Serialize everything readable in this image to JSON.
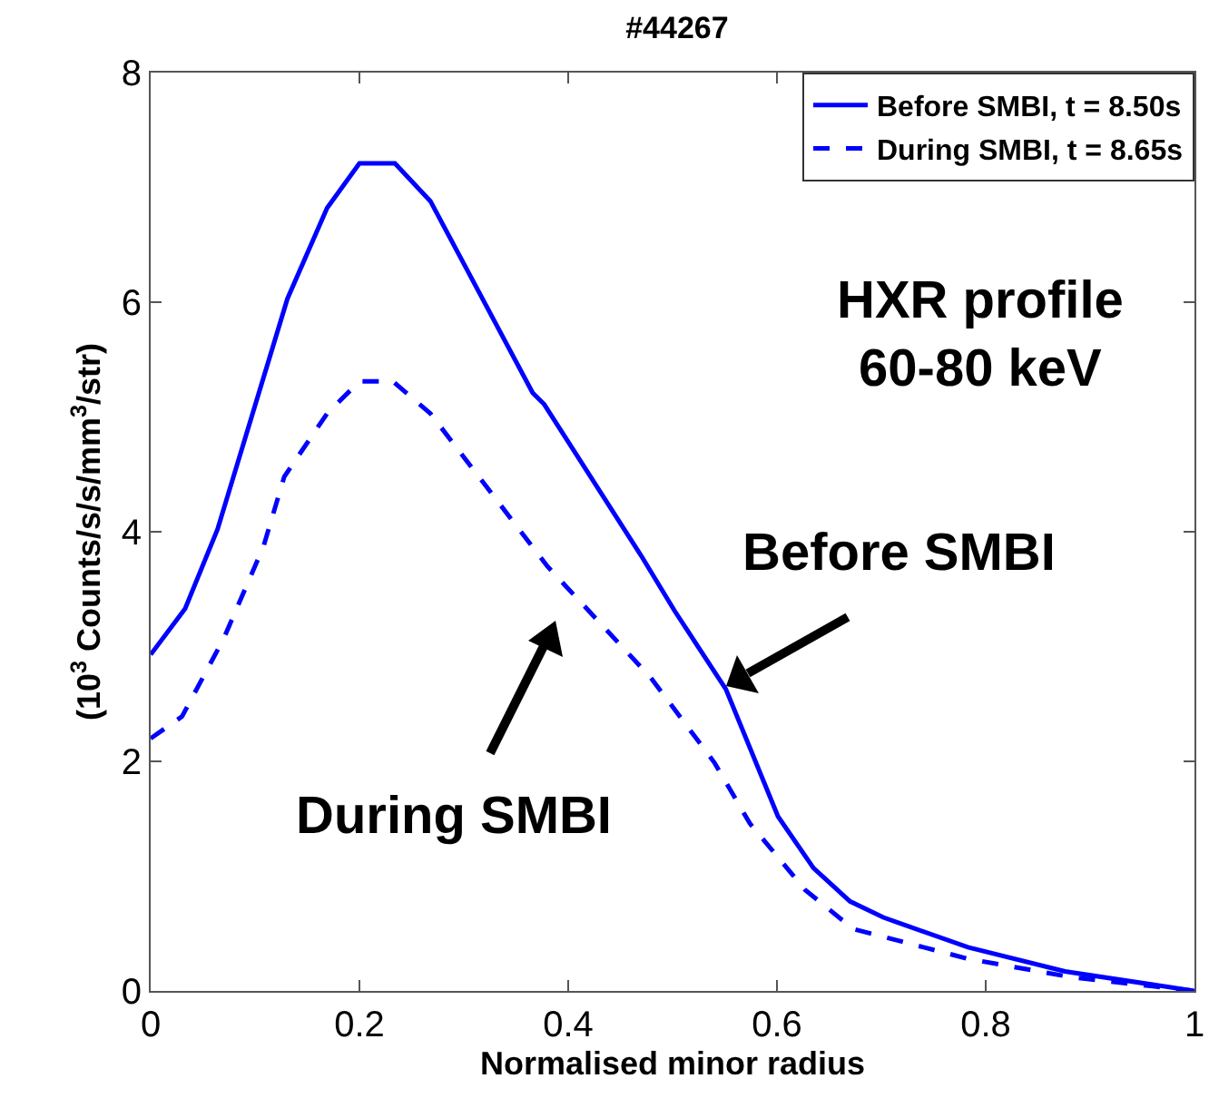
{
  "chart_data": {
    "type": "line",
    "title": "#44267",
    "xlabel": "Normalised minor radius",
    "ylabel": "(10$^{3}$ Counts/s/s/mm$^{3}$/str)",
    "xlim": [
      0,
      1
    ],
    "xticks": [
      0,
      0.2,
      0.4,
      0.6,
      0.8,
      1
    ],
    "ylim": [
      0,
      8
    ],
    "yticks": [
      0,
      2,
      4,
      6,
      8
    ],
    "grid": false,
    "legend": "top right",
    "marker": "none",
    "series": [
      {
        "name": "Before SMBI, t = 8.50s",
        "color": "#0000ff",
        "line_style": "solid",
        "x": [
          0,
          0.033,
          0.064,
          0.131,
          0.169,
          0.2,
          0.234,
          0.268,
          0.366,
          0.377,
          0.47,
          0.502,
          0.551,
          0.601,
          0.635,
          0.67,
          0.702,
          0.783,
          0.876,
          1
        ],
        "values": [
          2.93,
          3.33,
          4.02,
          6.03,
          6.82,
          7.21,
          7.21,
          6.88,
          5.21,
          5.11,
          3.79,
          3.31,
          2.63,
          1.52,
          1.07,
          0.78,
          0.64,
          0.38,
          0.17,
          0
        ]
      },
      {
        "name": "During SMBI, t = 8.65s",
        "color": "#0000ff",
        "line_style": "dashed",
        "x": [
          0,
          0.03,
          0.07,
          0.108,
          0.128,
          0.169,
          0.2,
          0.232,
          0.268,
          0.38,
          0.479,
          0.54,
          0.574,
          0.627,
          0.673,
          0.783,
          0.882,
          1
        ],
        "values": [
          2.2,
          2.39,
          3.07,
          3.87,
          4.48,
          5.03,
          5.31,
          5.31,
          5.03,
          3.7,
          2.73,
          1.99,
          1.46,
          0.88,
          0.54,
          0.28,
          0.12,
          0
        ]
      }
    ],
    "annotations": [
      "HXR profile\n60-80 keV",
      "Before SMBI",
      "During SMBI"
    ]
  }
}
